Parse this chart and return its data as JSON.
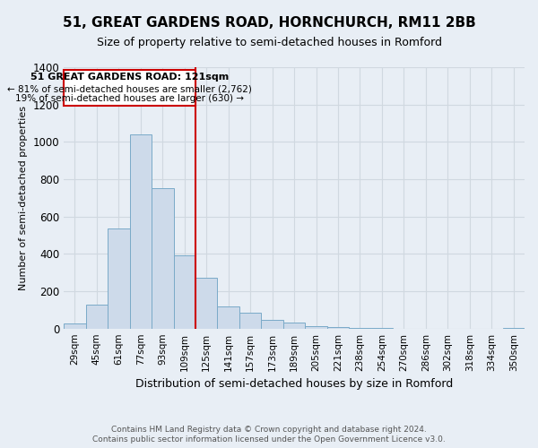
{
  "title": "51, GREAT GARDENS ROAD, HORNCHURCH, RM11 2BB",
  "subtitle": "Size of property relative to semi-detached houses in Romford",
  "xlabel": "Distribution of semi-detached houses by size in Romford",
  "ylabel": "Number of semi-detached properties",
  "footer1": "Contains HM Land Registry data © Crown copyright and database right 2024.",
  "footer2": "Contains public sector information licensed under the Open Government Licence v3.0.",
  "bar_color": "#cddaea",
  "bar_edge_color": "#7aaac8",
  "grid_color": "#d0d8e0",
  "bg_color": "#e8eef5",
  "annotation_box_color": "#ffffff",
  "annotation_border_color": "#cc0000",
  "vline_color": "#cc0000",
  "categories": [
    "29sqm",
    "45sqm",
    "61sqm",
    "77sqm",
    "93sqm",
    "109sqm",
    "125sqm",
    "141sqm",
    "157sqm",
    "173sqm",
    "189sqm",
    "205sqm",
    "221sqm",
    "238sqm",
    "254sqm",
    "270sqm",
    "286sqm",
    "302sqm",
    "318sqm",
    "334sqm",
    "350sqm"
  ],
  "values": [
    25,
    130,
    535,
    1040,
    750,
    390,
    270,
    120,
    85,
    45,
    30,
    15,
    8,
    3,
    1,
    0,
    0,
    0,
    0,
    0,
    5
  ],
  "vline_x_idx": 6,
  "annotation_title": "51 GREAT GARDENS ROAD: 121sqm",
  "annotation_line1": "← 81% of semi-detached houses are smaller (2,762)",
  "annotation_line2": "19% of semi-detached houses are larger (630) →",
  "ylim": [
    0,
    1400
  ],
  "yticks": [
    0,
    200,
    400,
    600,
    800,
    1000,
    1200,
    1400
  ]
}
